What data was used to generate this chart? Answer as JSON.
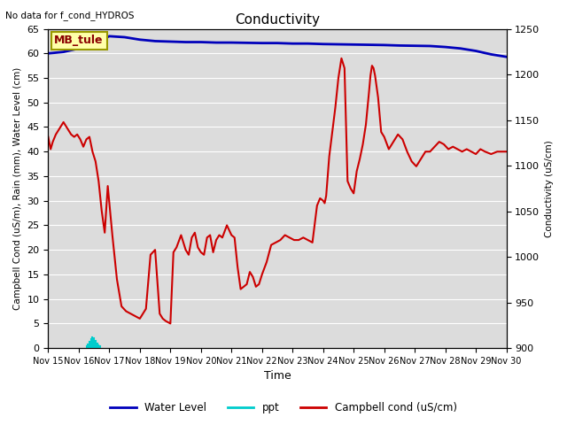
{
  "title": "Conductivity",
  "top_left_text": "No data for f_cond_HYDROS",
  "xlabel": "Time",
  "ylabel_left": "Campbell Cond (uS/m), Rain (mm), Water Level (cm)",
  "ylabel_right": "Conductivity (uS/cm)",
  "ylim_left": [
    0,
    65
  ],
  "ylim_right": [
    900,
    1250
  ],
  "box_label": "MB_tule",
  "bg_color": "#dcdcdc",
  "legend": [
    {
      "label": "Water Level",
      "color": "#0000bb",
      "lw": 2
    },
    {
      "label": "ppt",
      "color": "#00cccc",
      "lw": 2
    },
    {
      "label": "Campbell cond (uS/cm)",
      "color": "#cc0000",
      "lw": 1.5
    }
  ],
  "xtick_labels": [
    "Nov 15",
    "Nov 16",
    "Nov 17",
    "Nov 18",
    "Nov 19",
    "Nov 20",
    "Nov 21",
    "Nov 22",
    "Nov 23",
    "Nov 24",
    "Nov 25",
    "Nov 26",
    "Nov 27",
    "Nov 28",
    "Nov 29",
    "Nov 30"
  ],
  "water_level_x": [
    0,
    0.5,
    1.0,
    1.5,
    2.0,
    2.5,
    3.0,
    3.5,
    4.0,
    4.5,
    5.0,
    5.5,
    6.0,
    6.5,
    7.0,
    7.5,
    8.0,
    8.5,
    9.0,
    9.5,
    10.0,
    10.5,
    11.0,
    11.5,
    12.0,
    12.5,
    13.0,
    13.5,
    14.0,
    14.5,
    15.0
  ],
  "water_level_y": [
    60.0,
    60.3,
    61.0,
    62.0,
    63.5,
    63.3,
    62.8,
    62.5,
    62.4,
    62.3,
    62.3,
    62.2,
    62.2,
    62.15,
    62.1,
    62.1,
    62.0,
    62.0,
    61.9,
    61.85,
    61.8,
    61.75,
    61.7,
    61.6,
    61.55,
    61.5,
    61.3,
    61.0,
    60.5,
    59.8,
    59.3
  ],
  "ppt_x": [
    1.25,
    1.3,
    1.35,
    1.4,
    1.45,
    1.5,
    1.55,
    1.6,
    1.65,
    1.7
  ],
  "ppt_y": [
    0.3,
    0.8,
    1.2,
    1.8,
    2.2,
    2.0,
    1.5,
    1.0,
    0.6,
    0.3
  ],
  "campbell_x": [
    0.0,
    0.08,
    0.15,
    0.25,
    0.35,
    0.5,
    0.65,
    0.75,
    0.85,
    0.95,
    1.05,
    1.15,
    1.25,
    1.35,
    1.45,
    1.55,
    1.65,
    1.75,
    1.85,
    1.95,
    2.1,
    2.25,
    2.4,
    2.55,
    2.7,
    2.85,
    3.0,
    3.1,
    3.2,
    3.35,
    3.5,
    3.65,
    3.75,
    3.85,
    4.0,
    4.1,
    4.2,
    4.35,
    4.5,
    4.6,
    4.7,
    4.8,
    4.9,
    5.0,
    5.1,
    5.2,
    5.3,
    5.4,
    5.5,
    5.6,
    5.7,
    5.85,
    6.0,
    6.1,
    6.2,
    6.3,
    6.4,
    6.5,
    6.6,
    6.7,
    6.8,
    6.9,
    7.0,
    7.15,
    7.3,
    7.45,
    7.6,
    7.75,
    7.9,
    8.05,
    8.2,
    8.35,
    8.5,
    8.65,
    8.8,
    8.9,
    9.0,
    9.05,
    9.1,
    9.15,
    9.2,
    9.3,
    9.4,
    9.5,
    9.6,
    9.7,
    9.8,
    9.9,
    10.0,
    10.1,
    10.2,
    10.3,
    10.4,
    10.5,
    10.55,
    10.6,
    10.65,
    10.7,
    10.8,
    10.9,
    11.0,
    11.15,
    11.3,
    11.45,
    11.6,
    11.75,
    11.9,
    12.05,
    12.2,
    12.35,
    12.5,
    12.65,
    12.8,
    12.95,
    13.1,
    13.25,
    13.4,
    13.55,
    13.7,
    13.85,
    14.0,
    14.15,
    14.3,
    14.5,
    14.7,
    14.85,
    15.0
  ],
  "campbell_y": [
    43.0,
    40.5,
    42.0,
    43.5,
    44.5,
    46.0,
    44.5,
    43.5,
    43.0,
    43.5,
    42.5,
    41.0,
    42.5,
    43.0,
    40.0,
    38.0,
    34.0,
    28.0,
    23.5,
    33.0,
    23.0,
    14.0,
    8.5,
    7.5,
    7.0,
    6.5,
    6.0,
    7.0,
    8.0,
    19.0,
    20.0,
    7.0,
    6.0,
    5.5,
    5.0,
    19.5,
    20.5,
    23.0,
    20.0,
    19.0,
    22.5,
    23.5,
    20.5,
    19.5,
    19.0,
    22.5,
    23.0,
    19.5,
    22.0,
    23.0,
    22.5,
    25.0,
    23.0,
    22.5,
    16.5,
    12.0,
    12.5,
    13.0,
    15.5,
    14.5,
    12.5,
    13.0,
    15.0,
    17.5,
    21.0,
    21.5,
    22.0,
    23.0,
    22.5,
    22.0,
    22.0,
    22.5,
    22.0,
    21.5,
    29.0,
    30.5,
    30.0,
    29.5,
    31.0,
    35.0,
    39.0,
    44.0,
    49.0,
    55.0,
    59.0,
    57.0,
    34.0,
    32.5,
    31.5,
    36.0,
    38.5,
    41.5,
    45.5,
    52.0,
    55.5,
    57.5,
    57.0,
    55.5,
    51.0,
    44.0,
    43.0,
    40.5,
    42.0,
    43.5,
    42.5,
    40.0,
    38.0,
    37.0,
    38.5,
    40.0,
    40.0,
    41.0,
    42.0,
    41.5,
    40.5,
    41.0,
    40.5,
    40.0,
    40.5,
    40.0,
    39.5,
    40.5,
    40.0,
    39.5,
    40.0,
    40.0,
    40.0
  ]
}
